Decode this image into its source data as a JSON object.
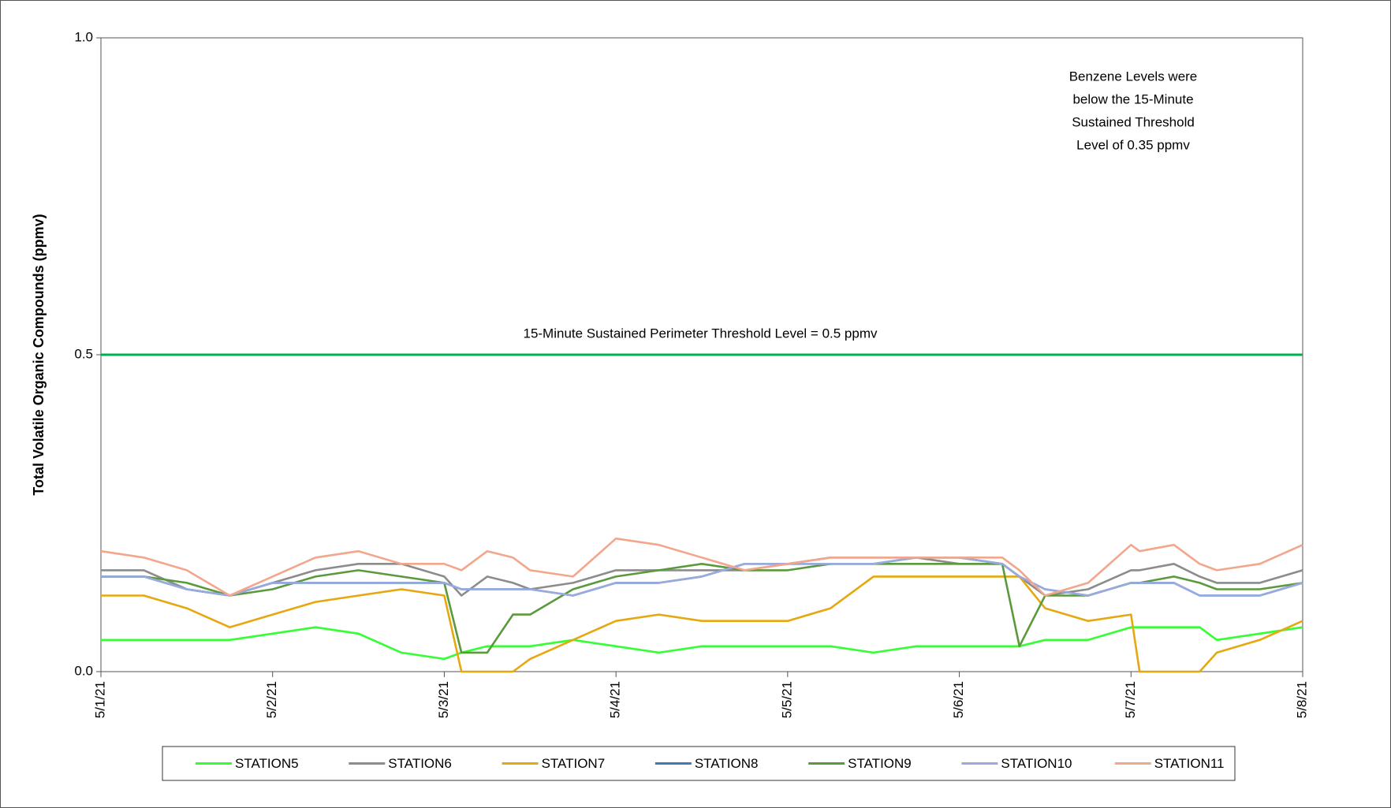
{
  "chart_data": {
    "type": "line",
    "y_label": "Total Volatile Organic Compounds  (ppmv)",
    "x": [
      0,
      0.25,
      0.5,
      0.75,
      1,
      1.25,
      1.5,
      1.75,
      2,
      2.1,
      2.25,
      2.4,
      2.5,
      2.75,
      3,
      3.25,
      3.5,
      3.75,
      4,
      4.25,
      4.5,
      4.75,
      5,
      5.25,
      5.35,
      5.5,
      5.75,
      6,
      6.05,
      6.25,
      6.4,
      6.5,
      6.75,
      7
    ],
    "xlim": [
      0,
      7
    ],
    "xticks": [
      {
        "value": 0,
        "label": "5/1/21"
      },
      {
        "value": 1,
        "label": "5/2/21"
      },
      {
        "value": 2,
        "label": "5/3/21"
      },
      {
        "value": 3,
        "label": "5/4/21"
      },
      {
        "value": 4,
        "label": "5/5/21"
      },
      {
        "value": 5,
        "label": "5/6/21"
      },
      {
        "value": 6,
        "label": "5/7/21"
      },
      {
        "value": 7,
        "label": "5/8/21"
      }
    ],
    "ylim": [
      0,
      1
    ],
    "yticks": [
      {
        "value": 0,
        "label": "0.0"
      },
      {
        "value": 0.5,
        "label": "0.5"
      },
      {
        "value": 1,
        "label": "1.0"
      }
    ],
    "threshold": {
      "value": 0.5,
      "label": "15-Minute Sustained Perimeter Threshold Level = 0.5 ppmv",
      "color": "#00b050"
    },
    "annotation": [
      "Benzene Levels were",
      "below the 15-Minute",
      "Sustained Threshold",
      " Level of 0.35 ppmv"
    ],
    "legend": "bottom",
    "series": [
      {
        "name": "STATION5",
        "color": "#33ff33",
        "values": [
          0.05,
          0.05,
          0.05,
          0.05,
          0.06,
          0.07,
          0.06,
          0.03,
          0.02,
          0.03,
          0.04,
          0.04,
          0.04,
          0.05,
          0.04,
          0.03,
          0.04,
          0.04,
          0.04,
          0.04,
          0.03,
          0.04,
          0.04,
          0.04,
          0.04,
          0.05,
          0.05,
          0.07,
          0.07,
          0.07,
          0.07,
          0.05,
          0.06,
          0.07
        ]
      },
      {
        "name": "STATION6",
        "color": "#8c8c8c",
        "values": [
          0.16,
          0.16,
          0.13,
          0.12,
          0.14,
          0.16,
          0.17,
          0.17,
          0.15,
          0.12,
          0.15,
          0.14,
          0.13,
          0.14,
          0.16,
          0.16,
          0.16,
          0.16,
          0.17,
          0.18,
          0.18,
          0.18,
          0.17,
          0.17,
          0.15,
          0.12,
          0.13,
          0.16,
          0.16,
          0.17,
          0.15,
          0.14,
          0.14,
          0.16
        ]
      },
      {
        "name": "STATION7",
        "color": "#e6a70f",
        "values": [
          0.12,
          0.12,
          0.1,
          0.07,
          0.09,
          0.11,
          0.12,
          0.13,
          0.12,
          0,
          0,
          0,
          0.02,
          0.05,
          0.08,
          0.09,
          0.08,
          0.08,
          0.08,
          0.1,
          0.15,
          0.15,
          0.15,
          0.15,
          0.15,
          0.1,
          0.08,
          0.09,
          0,
          0,
          0,
          0.03,
          0.05,
          0.08
        ]
      },
      {
        "name": "STATION8",
        "color": "#3d7ab8",
        "values": [
          0.15,
          0.15,
          0.13,
          0.12,
          0.14,
          0.14,
          0.14,
          0.14,
          0.14,
          0.13,
          0.13,
          0.13,
          0.13,
          0.12,
          0.14,
          0.14,
          0.15,
          0.17,
          0.17,
          0.17,
          0.17,
          0.18,
          0.18,
          0.17,
          0.15,
          0.13,
          0.12,
          0.14,
          0.14,
          0.14,
          0.12,
          0.12,
          0.12,
          0.14
        ]
      },
      {
        "name": "STATION9",
        "color": "#5a9a3c",
        "values": [
          0.15,
          0.15,
          0.14,
          0.12,
          0.13,
          0.15,
          0.16,
          0.15,
          0.14,
          0.03,
          0.03,
          0.09,
          0.09,
          0.13,
          0.15,
          0.16,
          0.17,
          0.16,
          0.16,
          0.17,
          0.17,
          0.17,
          0.17,
          0.17,
          0.04,
          0.12,
          0.12,
          0.14,
          0.14,
          0.15,
          0.14,
          0.13,
          0.13,
          0.14
        ]
      },
      {
        "name": "STATION10",
        "color": "#9aa9de",
        "values": [
          0.15,
          0.15,
          0.13,
          0.12,
          0.14,
          0.14,
          0.14,
          0.14,
          0.14,
          0.13,
          0.13,
          0.13,
          0.13,
          0.12,
          0.14,
          0.14,
          0.15,
          0.17,
          0.17,
          0.17,
          0.17,
          0.18,
          0.18,
          0.17,
          0.15,
          0.13,
          0.12,
          0.14,
          0.14,
          0.14,
          0.12,
          0.12,
          0.12,
          0.14
        ]
      },
      {
        "name": "STATION11",
        "color": "#f2a68c",
        "values": [
          0.19,
          0.18,
          0.16,
          0.12,
          0.15,
          0.18,
          0.19,
          0.17,
          0.17,
          0.16,
          0.19,
          0.18,
          0.16,
          0.15,
          0.21,
          0.2,
          0.18,
          0.16,
          0.17,
          0.18,
          0.18,
          0.18,
          0.18,
          0.18,
          0.16,
          0.12,
          0.14,
          0.2,
          0.19,
          0.2,
          0.17,
          0.16,
          0.17,
          0.2
        ]
      }
    ]
  }
}
